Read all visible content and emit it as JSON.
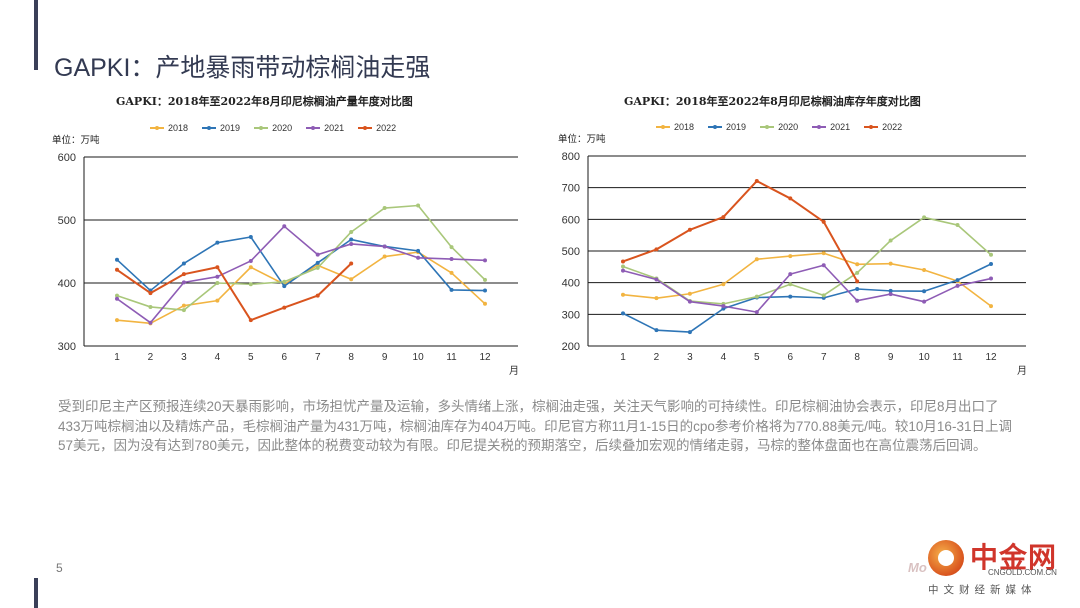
{
  "slide": {
    "title": "GAPKI：产地暴雨带动棕榈油走强",
    "page_number": "5",
    "body_text": "受到印尼主产区预报连续20天暴雨影响，市场担忧产量及运输，多头情绪上涨，棕榈油走强，关注天气影响的可持续性。印尼棕榈油协会表示，印尼8月出口了433万吨棕榈油以及精炼产品，毛棕榈油产量为431万吨，棕榈油库存为404万吨。印尼官方称11月1-15日的cpo参考价格将为770.88美元/吨。较10月16-31日上调57美元，因为没有达到780美元，因此整体的税费变动较为有限。印尼提关税的预期落空，后续叠加宏观的情绪走弱，马棕的整体盘面也在高位震荡后回调。"
  },
  "logo": {
    "brand": "中金网",
    "mark": "Mo",
    "domain": "CNGOLD.COM.CN",
    "tagline": "中文财经新媒体"
  },
  "chart_data": [
    {
      "type": "line",
      "title": "GAPKI：2018年至2022年8月印尼棕榈油产量年度对比图",
      "unit_label": "单位：万吨",
      "xlabel": "月",
      "ylabel": "",
      "ylim": [
        300,
        600
      ],
      "yticks": [
        300,
        400,
        500,
        600
      ],
      "categories": [
        "1",
        "2",
        "3",
        "4",
        "5",
        "6",
        "7",
        "8",
        "9",
        "10",
        "11",
        "12"
      ],
      "grid": "horizontal",
      "legend": "top",
      "series": [
        {
          "name": "2018",
          "color": "#f2b441",
          "values": [
            341,
            336,
            364,
            372,
            425,
            398,
            428,
            406,
            442,
            449,
            416,
            367
          ]
        },
        {
          "name": "2019",
          "color": "#2e75b6",
          "values": [
            437,
            388,
            431,
            464,
            473,
            395,
            432,
            469,
            458,
            451,
            389,
            388
          ]
        },
        {
          "name": "2020",
          "color": "#a9c77a",
          "values": [
            380,
            362,
            357,
            400,
            398,
            402,
            424,
            481,
            519,
            523,
            457,
            405
          ]
        },
        {
          "name": "2021",
          "color": "#8e5cb5",
          "values": [
            375,
            337,
            401,
            410,
            435,
            490,
            445,
            462,
            458,
            440,
            438,
            436
          ]
        },
        {
          "name": "2022",
          "color": "#d9541e",
          "values": [
            421,
            384,
            414,
            425,
            341,
            361,
            380,
            431,
            null,
            null,
            null,
            null
          ]
        }
      ]
    },
    {
      "type": "line",
      "title": "GAPKI：2018年至2022年8月印尼棕榈油库存年度对比图",
      "unit_label": "单位：万吨",
      "xlabel": "月",
      "ylabel": "",
      "ylim": [
        200,
        800
      ],
      "yticks": [
        200,
        300,
        400,
        500,
        600,
        700,
        800
      ],
      "categories": [
        "1",
        "2",
        "3",
        "4",
        "5",
        "6",
        "7",
        "8",
        "9",
        "10",
        "11",
        "12"
      ],
      "grid": "horizontal",
      "legend": "top",
      "series": [
        {
          "name": "2018",
          "color": "#f2b441",
          "values": [
            362,
            351,
            365,
            395,
            474,
            484,
            493,
            458,
            460,
            440,
            405,
            326
          ]
        },
        {
          "name": "2019",
          "color": "#2e75b6",
          "values": [
            303,
            250,
            244,
            318,
            353,
            356,
            352,
            380,
            374,
            373,
            408,
            459
          ]
        },
        {
          "name": "2020",
          "color": "#a9c77a",
          "values": [
            451,
            413,
            342,
            333,
            356,
            395,
            360,
            431,
            533,
            606,
            582,
            488
          ]
        },
        {
          "name": "2021",
          "color": "#8e5cb5",
          "values": [
            438,
            410,
            340,
            326,
            307,
            427,
            455,
            343,
            364,
            340,
            390,
            413
          ]
        },
        {
          "name": "2022",
          "color": "#d9541e",
          "values": [
            467,
            505,
            567,
            607,
            721,
            666,
            592,
            404,
            null,
            null,
            null,
            null
          ]
        }
      ]
    }
  ]
}
